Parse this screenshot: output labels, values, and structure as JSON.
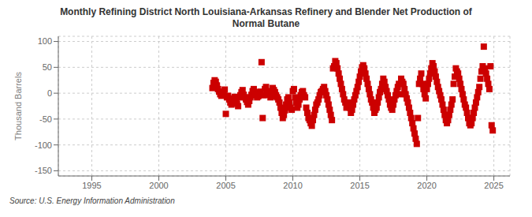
{
  "chart_data": {
    "type": "scatter",
    "title": "Monthly Refining District North Louisiana-Arkansas Refinery and Blender Net Production of\nNormal Butane",
    "ylabel": "Thousand Barrels",
    "source": "Source: U.S. Energy Information Administration",
    "color": "#CC0000",
    "marker": "square",
    "grid": true,
    "xlim": [
      1992.5,
      2026.2
    ],
    "ylim": [
      -160,
      110
    ],
    "xticks": [
      1995,
      2000,
      2005,
      2010,
      2015,
      2020,
      2025
    ],
    "yticks": [
      -150,
      -100,
      -50,
      0,
      50,
      100
    ],
    "x": [
      2004.0,
      2004.083,
      2004.167,
      2004.25,
      2004.333,
      2004.417,
      2004.5,
      2004.583,
      2004.667,
      2004.75,
      2004.833,
      2004.917,
      2005.0,
      2005.083,
      2005.167,
      2005.25,
      2005.333,
      2005.417,
      2005.5,
      2005.583,
      2005.667,
      2005.75,
      2005.833,
      2005.917,
      2006.0,
      2006.083,
      2006.167,
      2006.25,
      2006.333,
      2006.417,
      2006.5,
      2006.583,
      2006.667,
      2006.75,
      2006.833,
      2006.917,
      2007.0,
      2007.083,
      2007.167,
      2007.25,
      2007.333,
      2007.417,
      2007.5,
      2007.583,
      2007.667,
      2007.75,
      2007.833,
      2007.917,
      2008.0,
      2008.083,
      2008.167,
      2008.25,
      2008.333,
      2008.417,
      2008.5,
      2008.583,
      2008.667,
      2008.75,
      2008.833,
      2008.917,
      2009.0,
      2009.083,
      2009.167,
      2009.25,
      2009.333,
      2009.417,
      2009.5,
      2009.583,
      2009.667,
      2009.75,
      2009.833,
      2009.917,
      2010.0,
      2010.083,
      2010.167,
      2010.25,
      2010.333,
      2010.417,
      2010.5,
      2010.583,
      2010.667,
      2010.75,
      2010.833,
      2010.917,
      2011.0,
      2011.083,
      2011.167,
      2011.25,
      2011.333,
      2011.417,
      2011.5,
      2011.583,
      2011.667,
      2011.75,
      2011.833,
      2011.917,
      2012.0,
      2012.083,
      2012.167,
      2012.25,
      2012.333,
      2012.417,
      2012.5,
      2012.583,
      2012.667,
      2012.75,
      2012.833,
      2012.917,
      2013.0,
      2013.083,
      2013.167,
      2013.25,
      2013.333,
      2013.417,
      2013.5,
      2013.583,
      2013.667,
      2013.75,
      2013.833,
      2013.917,
      2014.0,
      2014.083,
      2014.167,
      2014.25,
      2014.333,
      2014.417,
      2014.5,
      2014.583,
      2014.667,
      2014.75,
      2014.833,
      2014.917,
      2015.0,
      2015.083,
      2015.167,
      2015.25,
      2015.333,
      2015.417,
      2015.5,
      2015.583,
      2015.667,
      2015.75,
      2015.833,
      2015.917,
      2016.0,
      2016.083,
      2016.167,
      2016.25,
      2016.333,
      2016.417,
      2016.5,
      2016.583,
      2016.667,
      2016.75,
      2016.833,
      2016.917,
      2017.0,
      2017.083,
      2017.167,
      2017.25,
      2017.333,
      2017.417,
      2017.5,
      2017.583,
      2017.667,
      2017.75,
      2017.833,
      2017.917,
      2018.0,
      2018.083,
      2018.167,
      2018.25,
      2018.333,
      2018.417,
      2018.5,
      2018.583,
      2018.667,
      2018.75,
      2018.833,
      2018.917,
      2019.0,
      2019.083,
      2019.167,
      2019.25,
      2019.333,
      2019.417,
      2019.5,
      2019.583,
      2019.667,
      2019.75,
      2019.833,
      2019.917,
      2020.0,
      2020.083,
      2020.167,
      2020.25,
      2020.333,
      2020.417,
      2020.5,
      2020.583,
      2020.667,
      2020.75,
      2020.833,
      2020.917,
      2021.0,
      2021.083,
      2021.167,
      2021.25,
      2021.333,
      2021.417,
      2021.5,
      2021.583,
      2021.667,
      2021.75,
      2021.833,
      2021.917,
      2022.0,
      2022.083,
      2022.167,
      2022.25,
      2022.333,
      2022.417,
      2022.5,
      2022.583,
      2022.667,
      2022.75,
      2022.833,
      2022.917,
      2023.0,
      2023.083,
      2023.167,
      2023.25,
      2023.333,
      2023.417,
      2023.5,
      2023.583,
      2023.667,
      2023.75,
      2023.833,
      2023.917,
      2024.0,
      2024.083,
      2024.167,
      2024.25,
      2024.333,
      2024.417,
      2024.5,
      2024.583,
      2024.667,
      2024.75,
      2024.833,
      2024.917
    ],
    "values": [
      10,
      20,
      25,
      22,
      15,
      8,
      3,
      -2,
      -5,
      -3,
      2,
      7,
      -40,
      -8,
      -5,
      -12,
      -18,
      -22,
      -15,
      -10,
      -7,
      -12,
      -20,
      -25,
      -8,
      -4,
      2,
      6,
      -3,
      -8,
      -12,
      -17,
      -22,
      -15,
      -8,
      -3,
      4,
      8,
      2,
      -4,
      -8,
      -6,
      -2,
      3,
      60,
      -48,
      -4,
      8,
      12,
      4,
      2,
      -3,
      -8,
      -6,
      10,
      6,
      2,
      -4,
      -8,
      -12,
      -18,
      -28,
      -38,
      -48,
      -42,
      -33,
      -22,
      -12,
      -8,
      -18,
      -28,
      -32,
      4,
      8,
      -8,
      -18,
      -28,
      -22,
      -12,
      -4,
      2,
      4,
      -4,
      -8,
      -28,
      -38,
      -48,
      -52,
      -58,
      -63,
      -52,
      -42,
      -32,
      -22,
      -18,
      -12,
      -4,
      2,
      4,
      8,
      12,
      4,
      -4,
      -12,
      -22,
      -32,
      -42,
      -52,
      48,
      52,
      62,
      58,
      48,
      38,
      28,
      18,
      8,
      -2,
      -12,
      -18,
      -28,
      -22,
      -18,
      -28,
      -38,
      -32,
      -22,
      -12,
      -4,
      4,
      12,
      22,
      32,
      42,
      50,
      54,
      48,
      38,
      28,
      18,
      8,
      -2,
      -12,
      -18,
      -28,
      -38,
      -32,
      -28,
      -18,
      -8,
      2,
      8,
      18,
      28,
      22,
      12,
      4,
      -4,
      -12,
      -22,
      -28,
      -32,
      -22,
      -12,
      -4,
      4,
      12,
      18,
      -2,
      28,
      22,
      18,
      8,
      -2,
      -10,
      -18,
      -28,
      -38,
      -48,
      -58,
      -68,
      -78,
      -88,
      -98,
      -48,
      18,
      28,
      38,
      18,
      8,
      -2,
      -10,
      8,
      18,
      28,
      38,
      48,
      58,
      52,
      42,
      32,
      22,
      12,
      4,
      -4,
      -12,
      -22,
      -32,
      -42,
      -52,
      -58,
      -52,
      -42,
      -32,
      -22,
      -12,
      18,
      32,
      48,
      42,
      38,
      28,
      18,
      8,
      -2,
      -12,
      -22,
      -28,
      -38,
      -48,
      -58,
      -62,
      -58,
      -48,
      -38,
      -28,
      -18,
      -8,
      2,
      12,
      28,
      42,
      52,
      90,
      48,
      38,
      28,
      18,
      8,
      52,
      -62,
      -72
    ]
  }
}
